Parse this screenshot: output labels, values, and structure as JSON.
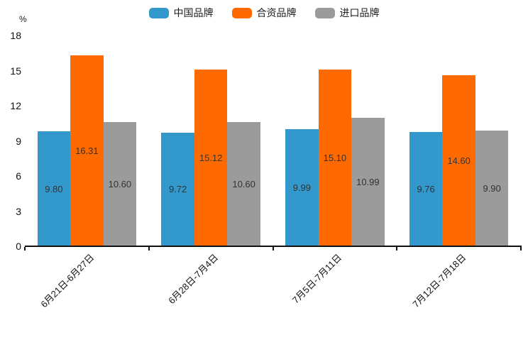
{
  "chart_data": {
    "type": "bar",
    "title": "",
    "unit_label": "%",
    "categories": [
      "6月21日-6月27日",
      "6月28日-7月4日",
      "7月5日-7月11日",
      "7月12日-7月18日"
    ],
    "series": [
      {
        "name": "中国品牌",
        "color": "#3398cc",
        "values": [
          9.8,
          9.72,
          9.99,
          9.76
        ],
        "labels": [
          "9.80",
          "9.72",
          "9.99",
          "9.76"
        ]
      },
      {
        "name": "合资品牌",
        "color": "#ff6a00",
        "values": [
          16.31,
          15.12,
          15.1,
          14.6
        ],
        "labels": [
          "16.31",
          "15.12",
          "15.10",
          "14.60"
        ]
      },
      {
        "name": "进口品牌",
        "color": "#9b9b9b",
        "values": [
          10.6,
          10.6,
          10.99,
          9.9
        ],
        "labels": [
          "10.60",
          "10.60",
          "10.99",
          "9.90"
        ]
      }
    ],
    "yticks": [
      0,
      3,
      6,
      9,
      12,
      15,
      18
    ],
    "ylim": [
      0,
      18
    ],
    "value_label_position": "inside-center",
    "legend_position": "top-center",
    "grid": false,
    "xlabel_rotation_deg": 45
  }
}
